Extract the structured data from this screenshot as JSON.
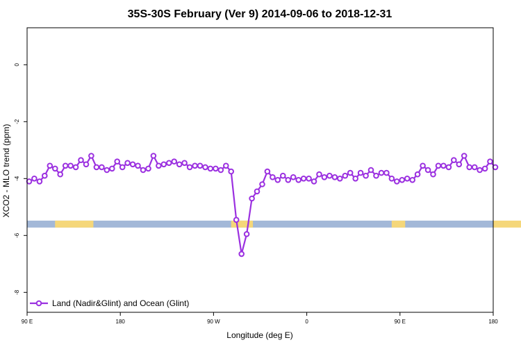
{
  "chart_data": {
    "type": "line",
    "title": "35S-30S February (Ver 9)   2014-09-06 to 2018-12-31",
    "xlabel": "Longitude (deg E)",
    "ylabel": "XCO2 - MLO trend (ppm)",
    "x_ticks": [
      {
        "value": 90,
        "label": "90 E"
      },
      {
        "value": 180,
        "label": "180"
      },
      {
        "value": 270,
        "label": "90 W"
      },
      {
        "value": 360,
        "label": "0"
      },
      {
        "value": 450,
        "label": "90 E"
      },
      {
        "value": 540,
        "label": "180"
      }
    ],
    "y_ticks": [
      {
        "value": 0,
        "label": "0"
      },
      {
        "value": -2,
        "label": "-2"
      },
      {
        "value": -4,
        "label": "-4"
      },
      {
        "value": -6,
        "label": "-6"
      },
      {
        "value": -8,
        "label": "-8"
      }
    ],
    "xlim": [
      90,
      540
    ],
    "ylim": [
      -8.7,
      1.3
    ],
    "grid": false,
    "legend_position": "bottom-left",
    "surface_band": {
      "y_center": -5.6,
      "ocean_color": "#a3b8d8",
      "land_color": "#f5d77a",
      "land_ranges": [
        [
          117,
          154
        ],
        [
          287,
          308
        ],
        [
          442,
          455
        ],
        [
          540,
          577
        ]
      ]
    },
    "series": [
      {
        "name": "Land (Nadir&Glint) and Ocean (Glint)",
        "color": "#9b30e0",
        "x": [
          92,
          97,
          102,
          107,
          112,
          117,
          122,
          127,
          132,
          137,
          142,
          147,
          152,
          157,
          162,
          167,
          172,
          177,
          182,
          187,
          192,
          197,
          202,
          207,
          212,
          217,
          222,
          227,
          232,
          237,
          242,
          247,
          252,
          257,
          262,
          267,
          272,
          277,
          282,
          287,
          292,
          297,
          302,
          307,
          312,
          317,
          322,
          327,
          332,
          337,
          342,
          347,
          352,
          357,
          362,
          367,
          372,
          377,
          382,
          387,
          392,
          397,
          402,
          407,
          412,
          417,
          422,
          427,
          432,
          437,
          442,
          447,
          452,
          457,
          462,
          467,
          472,
          477,
          482,
          487,
          492,
          497,
          502,
          507,
          512,
          517,
          522,
          527,
          532,
          537,
          542
        ],
        "y": [
          -4.1,
          -4.0,
          -4.1,
          -3.9,
          -3.55,
          -3.65,
          -3.85,
          -3.55,
          -3.55,
          -3.6,
          -3.35,
          -3.5,
          -3.2,
          -3.6,
          -3.6,
          -3.7,
          -3.65,
          -3.4,
          -3.6,
          -3.45,
          -3.5,
          -3.55,
          -3.7,
          -3.65,
          -3.2,
          -3.55,
          -3.5,
          -3.45,
          -3.4,
          -3.5,
          -3.45,
          -3.6,
          -3.55,
          -3.55,
          -3.6,
          -3.65,
          -3.65,
          -3.7,
          -3.55,
          -3.75,
          -5.45,
          -6.65,
          -5.95,
          -4.7,
          -4.45,
          -4.2,
          -3.75,
          -3.95,
          -4.05,
          -3.9,
          -4.05,
          -3.95,
          -4.05,
          -4.0,
          -4.0,
          -4.1,
          -3.85,
          -3.95,
          -3.9,
          -3.95,
          -4.0,
          -3.9,
          -3.8,
          -4.0,
          -3.8,
          -3.9,
          -3.7,
          -3.9,
          -3.8,
          -3.8,
          -4.0,
          -4.1,
          -4.05,
          -4.0,
          -4.05,
          -3.85,
          -3.55,
          -3.7,
          -3.85,
          -3.55,
          -3.55,
          -3.6,
          -3.35,
          -3.5,
          -3.2,
          -3.6,
          -3.6,
          -3.7,
          -3.65,
          -3.4,
          -3.6
        ]
      }
    ]
  }
}
